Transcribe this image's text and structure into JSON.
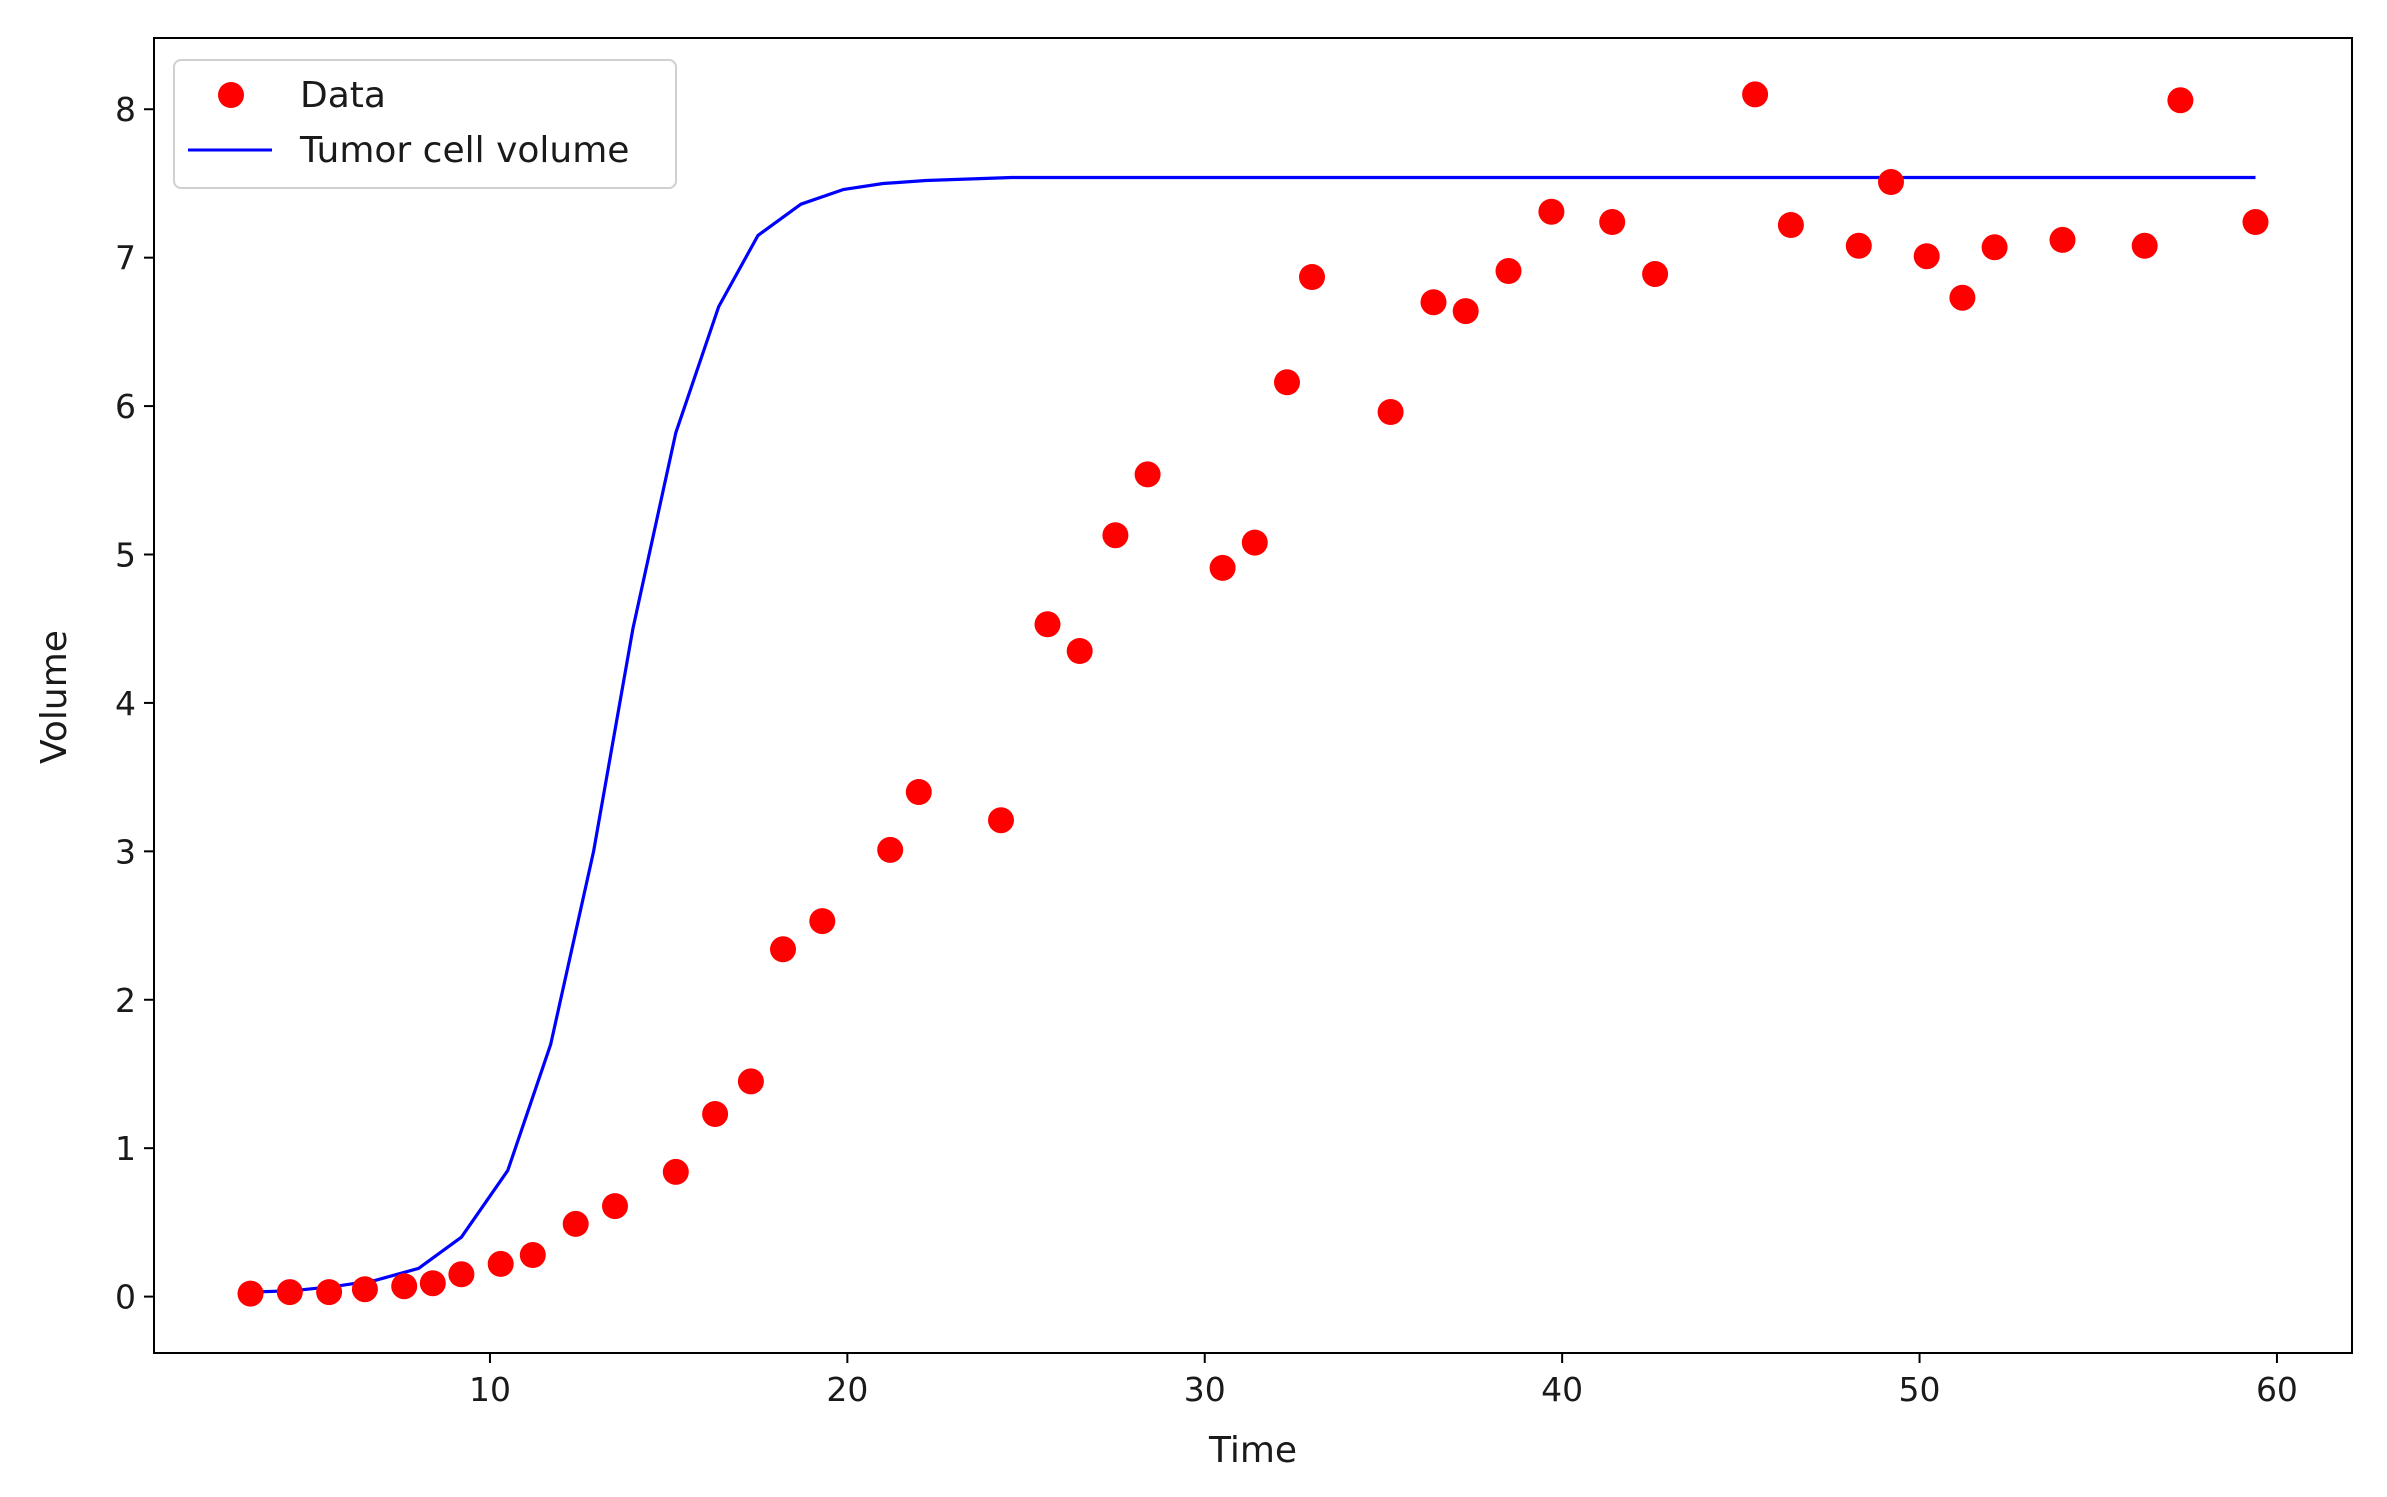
{
  "chart_data": {
    "type": "scatter",
    "title": "",
    "xlabel": "Time",
    "ylabel": "Volume",
    "xlim": [
      0.6,
      62.1
    ],
    "ylim": [
      -0.38,
      8.48
    ],
    "xticks": [
      10,
      20,
      30,
      40,
      50,
      60
    ],
    "yticks": [
      0,
      1,
      2,
      3,
      4,
      5,
      6,
      7,
      8
    ],
    "grid": false,
    "legend": {
      "placement": "upper-left"
    },
    "series": [
      {
        "name": "Data",
        "kind": "scatter",
        "color": "#ff0000",
        "x": [
          3.3,
          4.4,
          5.5,
          6.5,
          7.6,
          8.4,
          9.2,
          10.3,
          11.2,
          12.4,
          13.5,
          15.2,
          16.3,
          17.3,
          18.2,
          19.3,
          21.2,
          22.0,
          24.3,
          25.6,
          26.5,
          27.5,
          28.4,
          30.5,
          31.4,
          32.3,
          33.0,
          35.2,
          36.4,
          37.3,
          38.5,
          39.7,
          41.4,
          42.6,
          45.4,
          46.4,
          48.3,
          49.2,
          50.2,
          51.2,
          52.1,
          54.0,
          56.3,
          57.3,
          59.4
        ],
        "y": [
          0.02,
          0.03,
          0.03,
          0.05,
          0.07,
          0.09,
          0.15,
          0.22,
          0.28,
          0.49,
          0.61,
          0.84,
          1.23,
          1.45,
          2.34,
          2.53,
          3.01,
          3.4,
          3.21,
          4.53,
          4.35,
          5.13,
          5.54,
          4.91,
          5.08,
          6.16,
          6.87,
          5.96,
          6.7,
          6.64,
          6.91,
          7.31,
          7.24,
          6.89,
          8.1,
          7.22,
          7.08,
          7.51,
          7.01,
          6.73,
          7.07,
          7.12,
          7.08,
          8.06,
          7.24
        ]
      },
      {
        "name": "Tumor cell volume",
        "kind": "line",
        "color": "#0000ff",
        "x": [
          3.3,
          4.5,
          5.7,
          6.8,
          8.0,
          9.2,
          10.5,
          11.7,
          12.9,
          14.0,
          15.2,
          16.4,
          17.5,
          18.7,
          19.9,
          21.0,
          22.2,
          23.4,
          24.6,
          25.8,
          27.0,
          28.2,
          30.0,
          35.0,
          40.0,
          45.0,
          50.0,
          55.0,
          59.4
        ],
        "y": [
          0.03,
          0.04,
          0.07,
          0.11,
          0.19,
          0.4,
          0.85,
          1.7,
          3.0,
          4.5,
          5.82,
          6.67,
          7.15,
          7.36,
          7.46,
          7.5,
          7.52,
          7.53,
          7.54,
          7.54,
          7.54,
          7.54,
          7.54,
          7.54,
          7.54,
          7.54,
          7.54,
          7.54,
          7.54
        ]
      }
    ]
  }
}
